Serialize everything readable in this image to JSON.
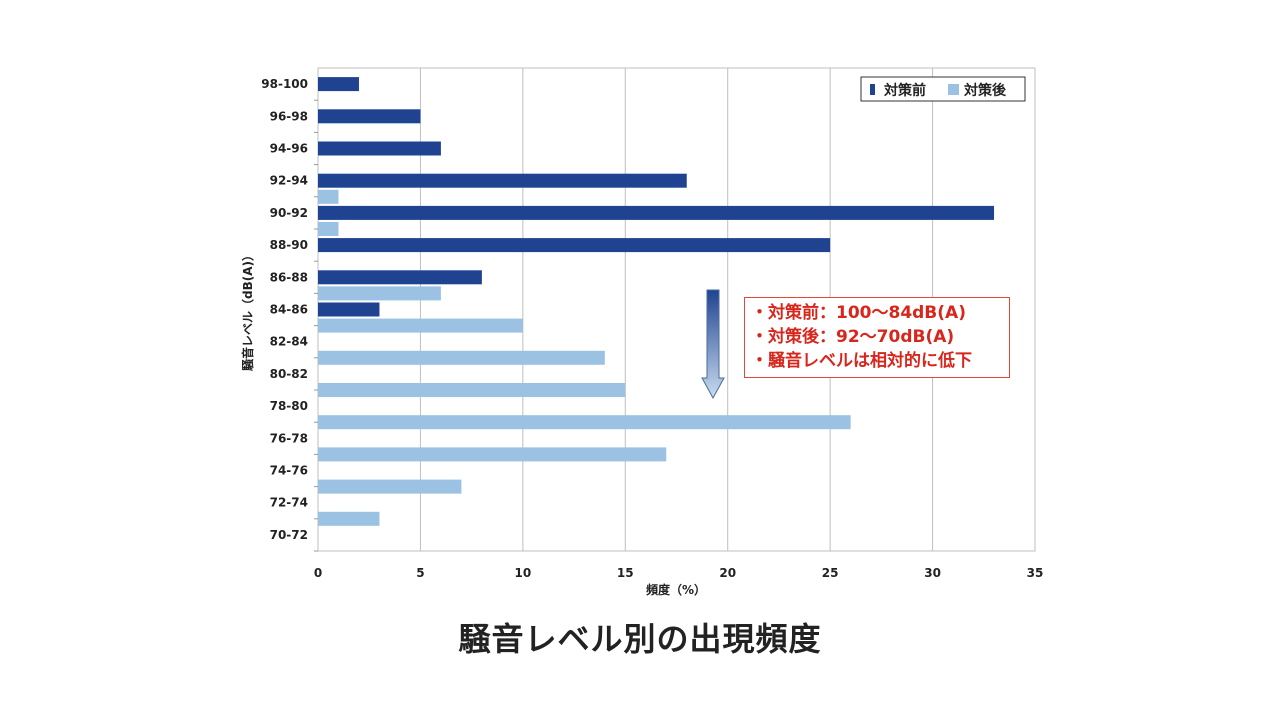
{
  "caption": "騒音レベル別の出現頻度",
  "annotations": [
    "・対策前：100〜84dB(A)",
    "・対策後：92〜70dB(A)",
    "・騒音レベルは相対的に低下"
  ],
  "colors": {
    "before": "#1f4391",
    "after": "#9bc2e3",
    "grid": "#bfbfbf",
    "note": "#d9261c"
  },
  "chart_data": {
    "type": "bar",
    "orientation": "horizontal",
    "xlabel": "頻度（%）",
    "ylabel": "騒音レベル（dB(A)）",
    "xlim": [
      0,
      35
    ],
    "xticks": [
      0,
      5,
      10,
      15,
      20,
      25,
      30,
      35
    ],
    "grid": true,
    "legend_position": "top-right",
    "categories": [
      "98-100",
      "96-98",
      "94-96",
      "92-94",
      "90-92",
      "88-90",
      "86-88",
      "84-86",
      "82-84",
      "80-82",
      "78-80",
      "76-78",
      "74-76",
      "72-74",
      "70-72"
    ],
    "series": [
      {
        "name": "対策前",
        "values": [
          2,
          5,
          6,
          18,
          33,
          25,
          8,
          3,
          0,
          0,
          0,
          0,
          0,
          0,
          0
        ]
      },
      {
        "name": "対策後",
        "values": [
          0,
          0,
          0,
          0,
          1,
          1,
          0,
          6,
          10,
          14,
          15,
          26,
          17,
          7,
          3
        ]
      }
    ]
  }
}
